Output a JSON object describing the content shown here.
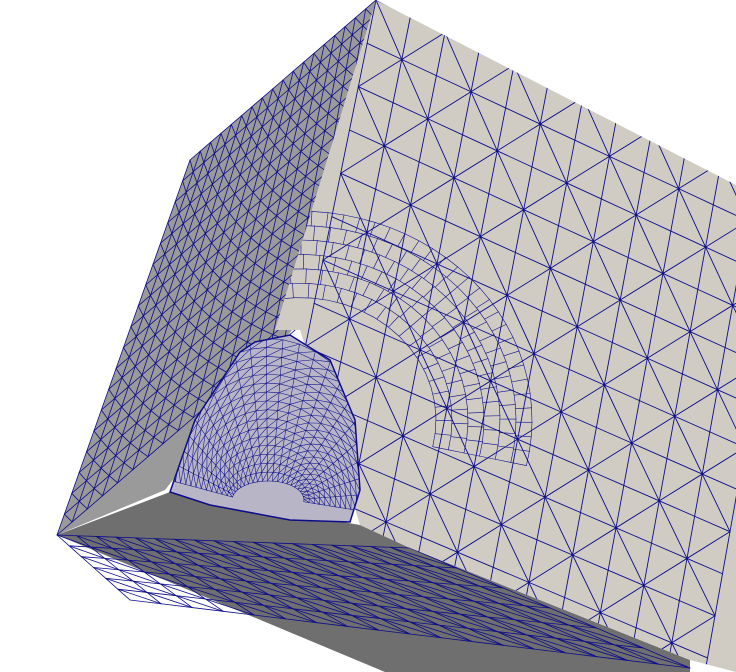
{
  "scene": {
    "object": "tetrahedral-mesh-cube-with-spherical-cavity",
    "background_color": "#ffffff",
    "wireframe_color": "#0c0c8a",
    "faces": {
      "front": {
        "fill": "#d0ccc4"
      },
      "left": {
        "fill": "#9a9a9a"
      },
      "bottom": {
        "fill": "#6f6f6f"
      },
      "cavity": {
        "fill": "#b8b6c6"
      }
    },
    "mesh_divisions": {
      "front": 12,
      "left": 18,
      "bottom": 18,
      "cavity_rings": 16,
      "cavity_segments": 22
    }
  }
}
